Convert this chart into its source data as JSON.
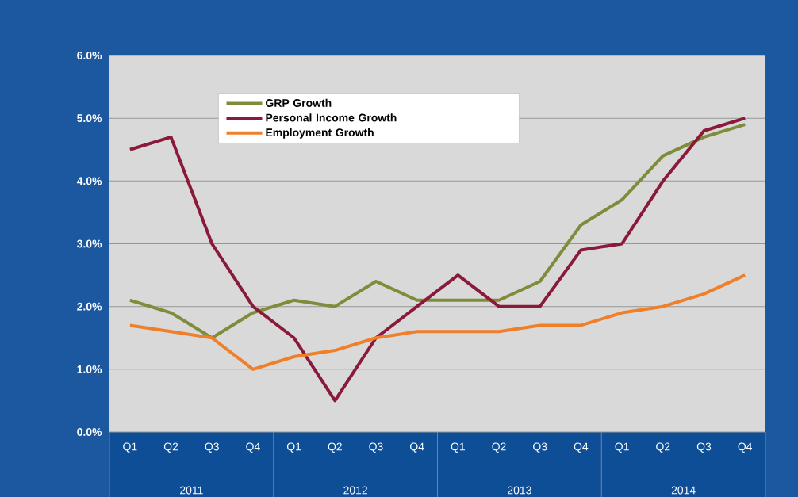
{
  "chart_data": {
    "type": "line",
    "categories": [
      "Q1",
      "Q2",
      "Q3",
      "Q4",
      "Q1",
      "Q2",
      "Q3",
      "Q4",
      "Q1",
      "Q2",
      "Q3",
      "Q4",
      "Q1",
      "Q2",
      "Q3",
      "Q4"
    ],
    "series": [
      {
        "name": "GRP Growth",
        "color": "#7f8c3a",
        "values": [
          2.1,
          1.9,
          1.5,
          1.9,
          2.1,
          2.0,
          2.4,
          2.1,
          2.1,
          2.1,
          2.4,
          3.3,
          3.7,
          4.4,
          4.7,
          4.9
        ]
      },
      {
        "name": "Personal Income Growth",
        "color": "#8b1a3a",
        "values": [
          4.5,
          4.7,
          3.0,
          2.0,
          1.5,
          0.5,
          1.5,
          2.0,
          2.5,
          2.0,
          2.0,
          2.9,
          3.0,
          4.0,
          4.8,
          5.0
        ]
      },
      {
        "name": "Employment Growth",
        "color": "#f07f2a",
        "values": [
          1.7,
          1.6,
          1.5,
          1.0,
          1.2,
          1.3,
          1.5,
          1.6,
          1.6,
          1.6,
          1.7,
          1.7,
          1.9,
          2.0,
          2.2,
          2.5
        ]
      }
    ],
    "ylim": [
      0,
      6
    ],
    "yticks": [
      {
        "value": 0,
        "label": "0.0%"
      },
      {
        "value": 1,
        "label": "1.0%"
      },
      {
        "value": 2,
        "label": "2.0%"
      },
      {
        "value": 3,
        "label": "3.0%"
      },
      {
        "value": 4,
        "label": "4.0%"
      },
      {
        "value": 5,
        "label": "5.0%"
      },
      {
        "value": 6,
        "label": "6.0%"
      }
    ],
    "annotations": [
      "2011",
      "2012",
      "2013",
      "2014"
    ],
    "grid": "y",
    "legend": "top",
    "marker": "none",
    "line_style": "solid"
  }
}
